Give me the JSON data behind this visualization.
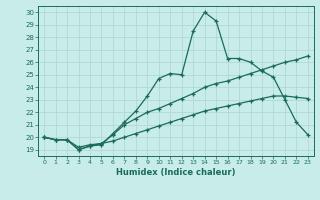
{
  "title": "",
  "xlabel": "Humidex (Indice chaleur)",
  "ylabel": "",
  "background_color": "#c8ece8",
  "grid_color": "#b0d8d4",
  "line_color": "#1a6b5a",
  "xlim": [
    -0.5,
    23.5
  ],
  "ylim": [
    18.5,
    30.5
  ],
  "xticks": [
    0,
    1,
    2,
    3,
    4,
    5,
    6,
    7,
    8,
    9,
    10,
    11,
    12,
    13,
    14,
    15,
    16,
    17,
    18,
    19,
    20,
    21,
    22,
    23
  ],
  "yticks": [
    19,
    20,
    21,
    22,
    23,
    24,
    25,
    26,
    27,
    28,
    29,
    30
  ],
  "series": [
    {
      "x": [
        0,
        1,
        2,
        3,
        4,
        5,
        6,
        7,
        8,
        9,
        10,
        11,
        12,
        13,
        14,
        15,
        16,
        17,
        18,
        19,
        20,
        21,
        22,
        23
      ],
      "y": [
        20.0,
        19.8,
        19.8,
        19.0,
        19.3,
        19.4,
        20.3,
        21.2,
        22.1,
        23.3,
        24.7,
        25.1,
        25.0,
        28.5,
        30.0,
        29.3,
        26.3,
        26.3,
        26.0,
        25.3,
        24.8,
        23.0,
        21.2,
        20.2
      ]
    },
    {
      "x": [
        0,
        1,
        2,
        3,
        4,
        5,
        6,
        7,
        8,
        9,
        10,
        11,
        12,
        13,
        14,
        15,
        16,
        17,
        18,
        19,
        20,
        21,
        22,
        23
      ],
      "y": [
        20.0,
        19.8,
        19.8,
        19.2,
        19.4,
        19.5,
        20.2,
        21.0,
        21.5,
        22.0,
        22.3,
        22.7,
        23.1,
        23.5,
        24.0,
        24.3,
        24.5,
        24.8,
        25.1,
        25.4,
        25.7,
        26.0,
        26.2,
        26.5
      ]
    },
    {
      "x": [
        0,
        1,
        2,
        3,
        4,
        5,
        6,
        7,
        8,
        9,
        10,
        11,
        12,
        13,
        14,
        15,
        16,
        17,
        18,
        19,
        20,
        21,
        22,
        23
      ],
      "y": [
        20.0,
        19.8,
        19.8,
        19.0,
        19.3,
        19.5,
        19.7,
        20.0,
        20.3,
        20.6,
        20.9,
        21.2,
        21.5,
        21.8,
        22.1,
        22.3,
        22.5,
        22.7,
        22.9,
        23.1,
        23.3,
        23.3,
        23.2,
        23.1
      ]
    }
  ]
}
